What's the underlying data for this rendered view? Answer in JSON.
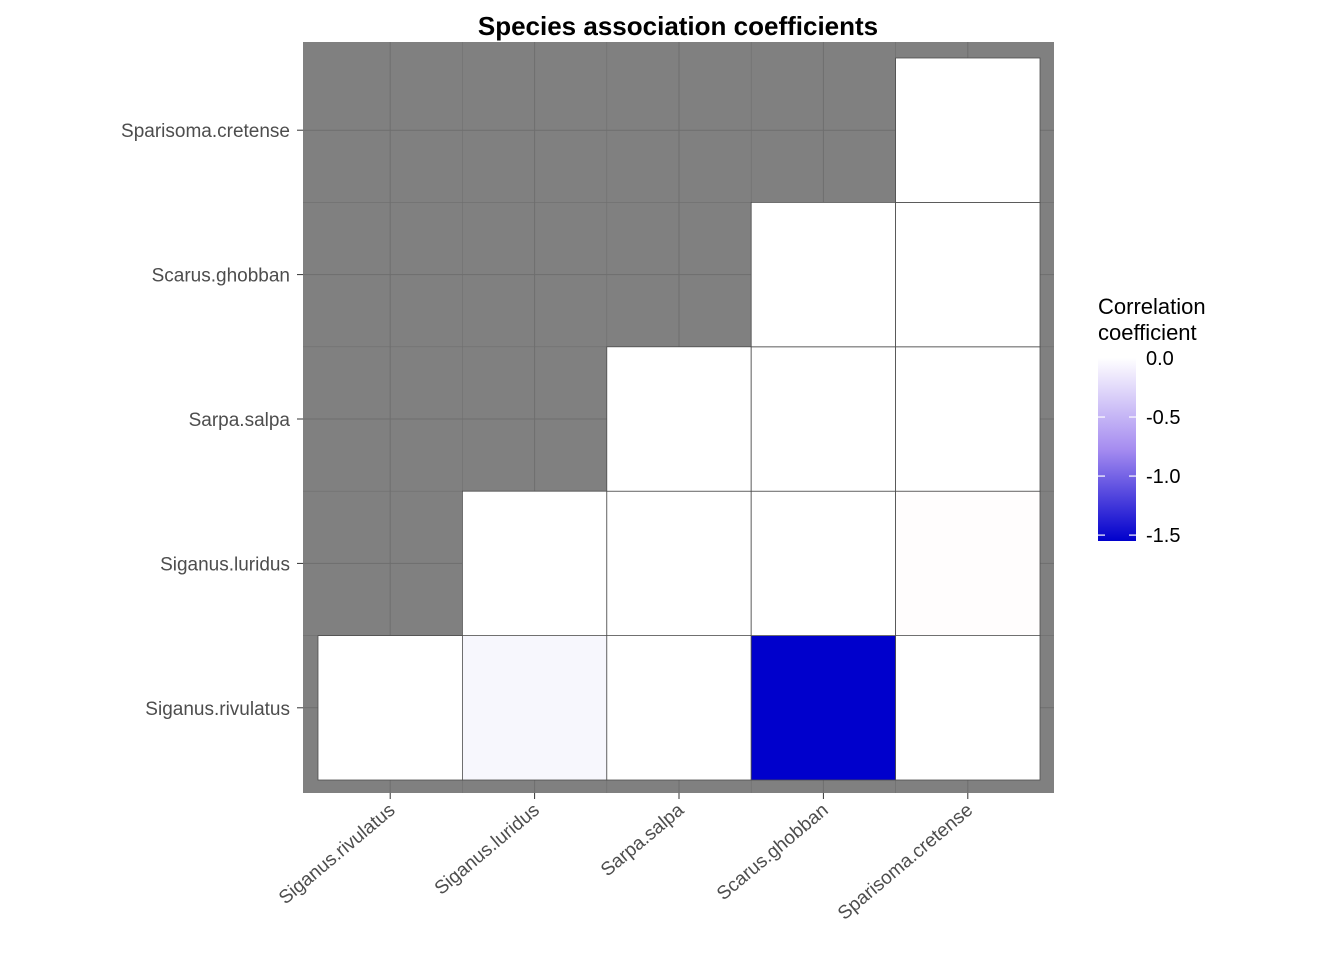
{
  "chart_data": {
    "type": "heatmap",
    "title": "Species association coefficients",
    "xlabel": "",
    "ylabel": "",
    "x_categories": [
      "Siganus.rivulatus",
      "Siganus.luridus",
      "Sarpa.salpa",
      "Scarus.ghobban",
      "Sparisoma.cretense"
    ],
    "y_categories": [
      "Siganus.rivulatus",
      "Siganus.luridus",
      "Sarpa.salpa",
      "Scarus.ghobban",
      "Sparisoma.cretense"
    ],
    "cells": [
      {
        "x": "Siganus.rivulatus",
        "y": "Siganus.rivulatus",
        "value": 0.0
      },
      {
        "x": "Siganus.luridus",
        "y": "Siganus.rivulatus",
        "value": -0.05
      },
      {
        "x": "Sarpa.salpa",
        "y": "Siganus.rivulatus",
        "value": 0.0
      },
      {
        "x": "Scarus.ghobban",
        "y": "Siganus.rivulatus",
        "value": -1.55
      },
      {
        "x": "Sparisoma.cretense",
        "y": "Siganus.rivulatus",
        "value": 0.0
      },
      {
        "x": "Siganus.luridus",
        "y": "Siganus.luridus",
        "value": 0.0
      },
      {
        "x": "Sarpa.salpa",
        "y": "Siganus.luridus",
        "value": 0.0
      },
      {
        "x": "Scarus.ghobban",
        "y": "Siganus.luridus",
        "value": 0.0
      },
      {
        "x": "Sparisoma.cretense",
        "y": "Siganus.luridus",
        "value": 0.01
      },
      {
        "x": "Sarpa.salpa",
        "y": "Sarpa.salpa",
        "value": 0.0
      },
      {
        "x": "Scarus.ghobban",
        "y": "Sarpa.salpa",
        "value": 0.0
      },
      {
        "x": "Sparisoma.cretense",
        "y": "Sarpa.salpa",
        "value": 0.0
      },
      {
        "x": "Scarus.ghobban",
        "y": "Scarus.ghobban",
        "value": 0.0
      },
      {
        "x": "Sparisoma.cretense",
        "y": "Scarus.ghobban",
        "value": 0.0
      },
      {
        "x": "Sparisoma.cretense",
        "y": "Sparisoma.cretense",
        "value": 0.0
      }
    ],
    "legend": {
      "title_lines": [
        "Correlation",
        "coefficient"
      ],
      "ticks": [
        0.0,
        -0.5,
        -1.0,
        -1.5
      ],
      "tick_labels": [
        "0.0",
        "-0.5",
        "-1.0",
        "-1.5"
      ],
      "range": [
        -1.55,
        0.0
      ],
      "placement": "right"
    },
    "colors": {
      "low": "#0000cc",
      "mid": "#ffffff",
      "high": "#ff0000",
      "panel_background": "#808080",
      "grid": "#6e6e6e",
      "cell_border": "#4d4d4d"
    }
  }
}
